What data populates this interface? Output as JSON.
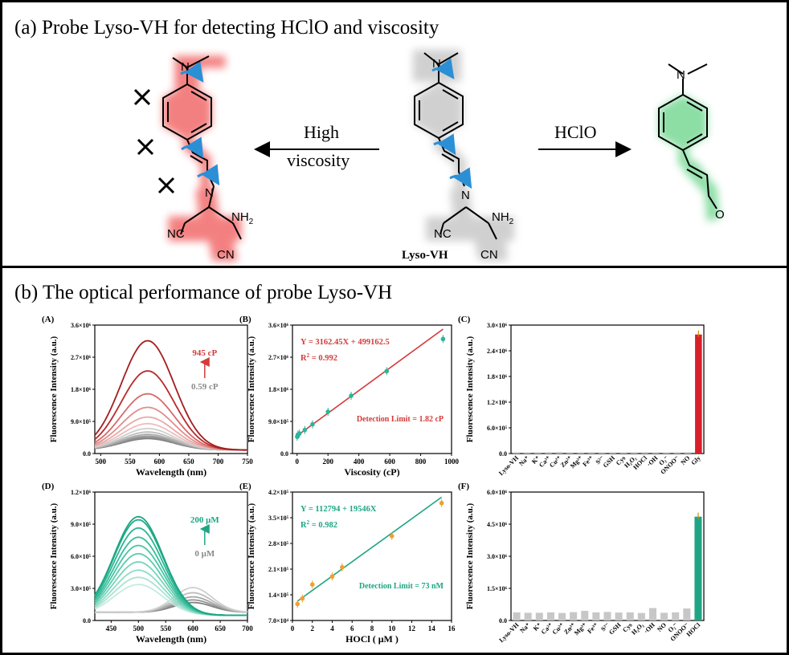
{
  "panel_a": {
    "title": "(a) Probe Lyso-VH for detecting HClO and viscosity",
    "arrow_left_label_line1": "High",
    "arrow_left_label_line2": "viscosity",
    "arrow_right_label": "HClO",
    "probe_name": "Lyso-VH",
    "atom_labels": {
      "n": "N",
      "nh2": "NH",
      "nh2_sub": "2",
      "nc": "NC",
      "cn": "CN",
      "o": "O"
    },
    "colors": {
      "viscosity_glow": "#f26a6a",
      "hclo_glow": "#6fd68f",
      "probe_glow": "#bdbdbd",
      "rotor_arrow": "#2b8fd6"
    }
  },
  "panel_b": {
    "title": "(b) The optical performance of probe Lyso-VH"
  },
  "chart_data": [
    {
      "id": "A",
      "label": "(A)",
      "type": "line",
      "xlabel": "Wavelength (nm)",
      "ylabel": "Fluorescence Intensity (a.u.)",
      "xlim": [
        490,
        750
      ],
      "ylim": [
        -100000,
        3600000
      ],
      "xticks": [
        "500",
        "550",
        "600",
        "650",
        "700",
        "750"
      ],
      "yticks": [
        "0.0",
        "9.0×10⁵",
        "1.8×10⁶",
        "2.7×10⁶",
        "3.6×10⁶"
      ],
      "annotation_high": "945 cP",
      "annotation_low": "0.59 cP",
      "peak_nm": 580,
      "peaks": [
        3150000,
        2280000,
        1620000,
        1230000,
        950000,
        760000,
        620000,
        520000,
        450000,
        400000,
        360000,
        330000
      ],
      "colors": [
        "#a11d1d",
        "#b82a2a",
        "#d46a6a",
        "#e08d8d",
        "#e8a8a8",
        "#eebdbd",
        "#cfcfcf",
        "#bdbdbd",
        "#ababab",
        "#9a9a9a",
        "#8c8c8c",
        "#7f7f7f"
      ]
    },
    {
      "id": "B",
      "label": "(B)",
      "type": "scatter",
      "xlabel": "Viscosity (cP)",
      "ylabel": "Fluorescence Intensity (a.u.)",
      "xlim": [
        -30,
        1000
      ],
      "ylim": [
        0,
        3600000
      ],
      "xticks": [
        "0",
        "200",
        "400",
        "600",
        "800",
        "1000"
      ],
      "yticks": [
        "0.0",
        "9.0×10⁵",
        "1.8×10⁶",
        "2.7×10⁶",
        "3.6×10⁶"
      ],
      "x": [
        0.59,
        5,
        15,
        50,
        100,
        200,
        350,
        580,
        945
      ],
      "y": [
        470000,
        530000,
        560000,
        660000,
        820000,
        1170000,
        1620000,
        2310000,
        3210000
      ],
      "equation": "Y = 3162.45X + 499162.5",
      "r2_prefix": "R",
      "r2_sup": "2",
      "r2_value": " = 0.992",
      "detection_limit": "Detection Limit = 1.82 cP",
      "fit": {
        "slope": 3162.45,
        "intercept": 499162.5
      },
      "point_color": "#2bb59a",
      "line_color": "#d43b3b",
      "text_color": "#d43b3b"
    },
    {
      "id": "C",
      "label": "(C)",
      "type": "bar",
      "ylabel": "Fluorescence Intensity (a.u.)",
      "ylim": [
        0,
        3000000
      ],
      "yticks": [
        "0.0",
        "6.0×10⁵",
        "1.2×10⁶",
        "1.8×10⁶",
        "2.4×10⁶",
        "3.0×10⁶"
      ],
      "categories": [
        "Lyso-VH",
        "Na⁺",
        "K⁺",
        "Ca²⁺",
        "Cu²⁺",
        "Zn²⁺",
        "Mg²⁺",
        "Fe³⁺",
        "S²⁻",
        "GSH",
        "Cys",
        "H₂O₂",
        "HOCl",
        "·OH",
        "O₂⁻",
        "ONOO⁻",
        "NO",
        "Gly"
      ],
      "values": [
        30000,
        28000,
        30000,
        32000,
        35000,
        30000,
        28000,
        31000,
        29000,
        30000,
        28000,
        30000,
        33000,
        30000,
        28000,
        30000,
        32000,
        2780000
      ],
      "highlight_color": "#d81f2a",
      "bar_color": "#c7c7c7"
    },
    {
      "id": "D",
      "label": "(D)",
      "type": "line",
      "xlabel": "Wavelength (nm)",
      "ylabel": "Fluorescence Intensity (a.u.)",
      "xlim": [
        420,
        700
      ],
      "ylim": [
        -50000,
        1200000
      ],
      "xticks": [
        "450",
        "500",
        "550",
        "600",
        "650",
        "700"
      ],
      "yticks": [
        "0.0",
        "3.0×10⁵",
        "6.0×10⁵",
        "9.0×10⁵",
        "1.2×10⁶"
      ],
      "annotation_high": "200 μM",
      "annotation_low": "0 μM",
      "peak_nm": 500,
      "peaks": [
        960000,
        930000,
        850000,
        760000,
        680000,
        600000,
        520000,
        440000,
        370000,
        300000,
        240000,
        190000,
        150000,
        120000,
        95000
      ],
      "colors": [
        "#1fa584",
        "#24ad8b",
        "#2bb592",
        "#35bd9a",
        "#48c4a4",
        "#5ccbad",
        "#76d3b9",
        "#8fdbc6",
        "#a9e3d2",
        "#c2ebde",
        "#cfcfcf",
        "#bcbcbc",
        "#a8a8a8",
        "#959595",
        "#808080"
      ]
    },
    {
      "id": "E",
      "label": "(E)",
      "type": "scatter",
      "xlabel": "HOCl ( μM )",
      "ylabel": "Fluorescence Intensity (a.u.)",
      "xlim": [
        0,
        16
      ],
      "ylim": [
        70000,
        420000
      ],
      "xticks": [
        "0",
        "2",
        "4",
        "6",
        "8",
        "10",
        "12",
        "14",
        "16"
      ],
      "yticks": [
        "7.0×10⁴",
        "1.4×10⁵",
        "2.1×10⁵",
        "2.8×10⁵",
        "3.5×10⁵",
        "4.2×10⁵"
      ],
      "x": [
        0.5,
        1,
        2,
        4,
        5,
        10,
        15
      ],
      "y": [
        115000,
        130000,
        168000,
        190000,
        215000,
        300000,
        390000
      ],
      "equation": "Y = 112794 + 19546X",
      "r2_prefix": "R",
      "r2_sup": "2",
      "r2_value": " = 0.982",
      "detection_limit": "Detection Limit = 73 nM",
      "fit": {
        "slope": 19546,
        "intercept": 112794
      },
      "point_color": "#f0a030",
      "line_color": "#1fa584",
      "text_color": "#1fa584"
    },
    {
      "id": "F",
      "label": "(F)",
      "type": "bar",
      "ylabel": "Fluorescence Intensity (a.u.)",
      "ylim": [
        0,
        6000000
      ],
      "yticks": [
        "0.0",
        "1.5×10⁶",
        "3.0×10⁶",
        "4.5×10⁶",
        "6.0×10⁶"
      ],
      "categories": [
        "Lyso-VH",
        "Na⁺",
        "K⁺",
        "Ca²⁺",
        "Cu²⁺",
        "Zn²⁺",
        "Mg²⁺",
        "Fe³⁺",
        "S²⁻",
        "GSH",
        "Cys",
        "H₂O₂",
        "·OH",
        "NO",
        "O₂⁻",
        "ONOO⁻",
        "HOCl"
      ],
      "values": [
        380000,
        360000,
        360000,
        380000,
        350000,
        390000,
        450000,
        380000,
        400000,
        370000,
        380000,
        350000,
        580000,
        360000,
        380000,
        560000,
        4850000
      ],
      "highlight_color": "#1fa584",
      "bar_color": "#c7c7c7"
    }
  ]
}
